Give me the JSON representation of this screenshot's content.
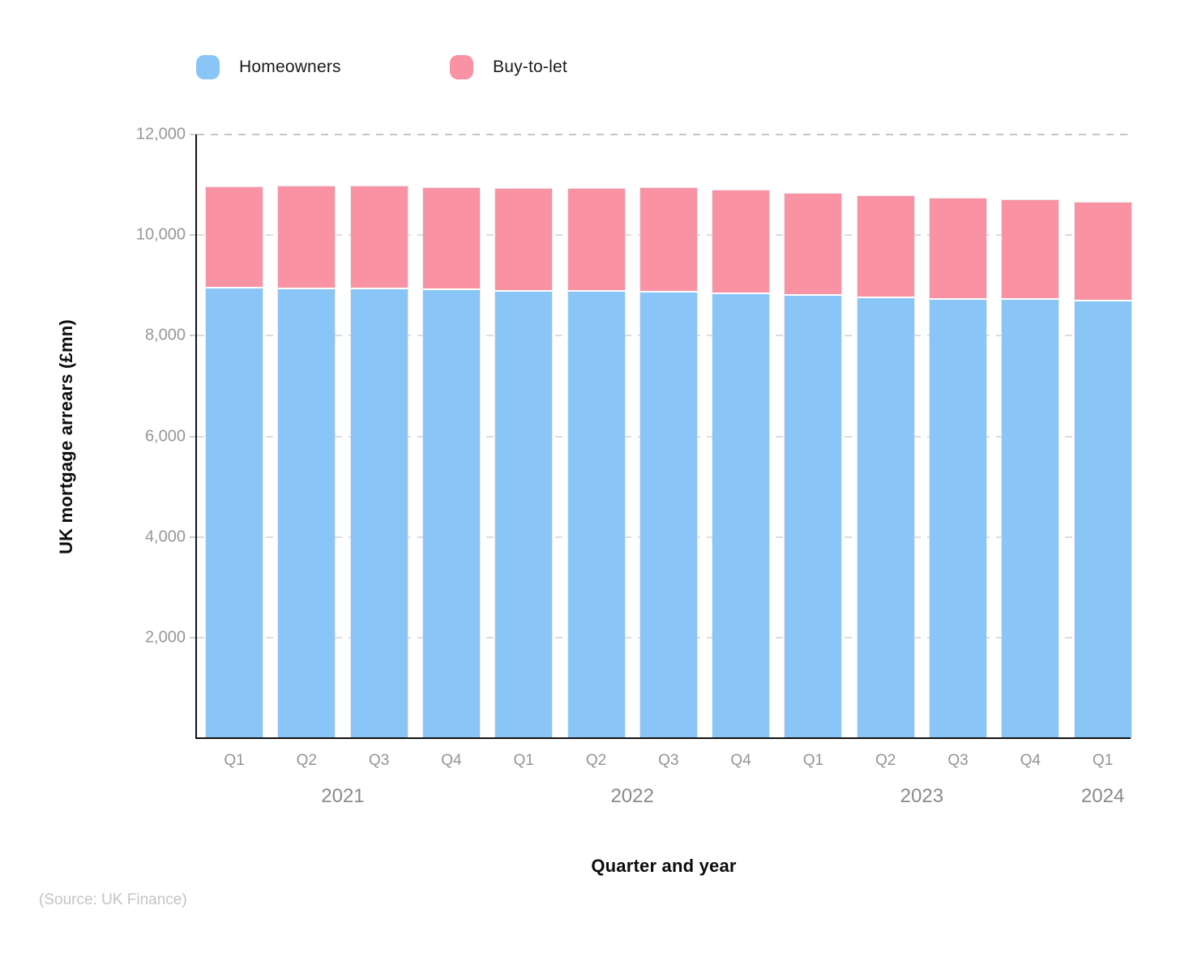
{
  "legend": {
    "items": [
      {
        "label": "Homeowners",
        "color": "#8AC5F8"
      },
      {
        "label": "Buy-to-let",
        "color": "#F992A3"
      }
    ]
  },
  "chart": {
    "y_axis_title": "UK mortgage arrears (£mn)",
    "x_axis_title": "Quarter and year",
    "source": "(Source: UK Finance)"
  },
  "chart_data": {
    "type": "bar",
    "stacked": true,
    "title": "",
    "xlabel": "Quarter and year",
    "ylabel": "UK mortgage arrears (£mn)",
    "categories": [
      "Q1 2021",
      "Q2 2021",
      "Q3 2021",
      "Q4 2021",
      "Q1 2022",
      "Q2 2022",
      "Q3 2022",
      "Q4 2022",
      "Q1 2023",
      "Q2 2023",
      "Q3 2023",
      "Q4 2023",
      "Q1 2024"
    ],
    "quarter_labels": [
      "Q1",
      "Q2",
      "Q3",
      "Q4",
      "Q1",
      "Q2",
      "Q3",
      "Q4",
      "Q1",
      "Q2",
      "Q3",
      "Q4",
      "Q1"
    ],
    "year_groups": [
      {
        "label": "2021",
        "start": 0,
        "end": 3
      },
      {
        "label": "2022",
        "start": 4,
        "end": 7
      },
      {
        "label": "2023",
        "start": 8,
        "end": 11
      },
      {
        "label": "2024",
        "start": 12,
        "end": 12
      }
    ],
    "series": [
      {
        "name": "Homeowners",
        "color": "#8AC5F8",
        "values": [
          8940,
          8930,
          8930,
          8900,
          8880,
          8880,
          8860,
          8830,
          8800,
          8740,
          8720,
          8720,
          8690
        ]
      },
      {
        "name": "Buy-to-let",
        "color": "#F992A3",
        "values": [
          2020,
          2040,
          2040,
          2040,
          2040,
          2040,
          2080,
          2060,
          2030,
          2040,
          2000,
          1980,
          1960
        ]
      }
    ],
    "ylim": [
      0,
      12000
    ],
    "yticks": [
      2000,
      4000,
      6000,
      8000,
      10000,
      12000
    ],
    "ytick_labels": [
      "2,000",
      "4,000",
      "6,000",
      "8,000",
      "10,000",
      "12,000"
    ],
    "grid": "horizontal-dashed",
    "legend_position": "top-left"
  }
}
